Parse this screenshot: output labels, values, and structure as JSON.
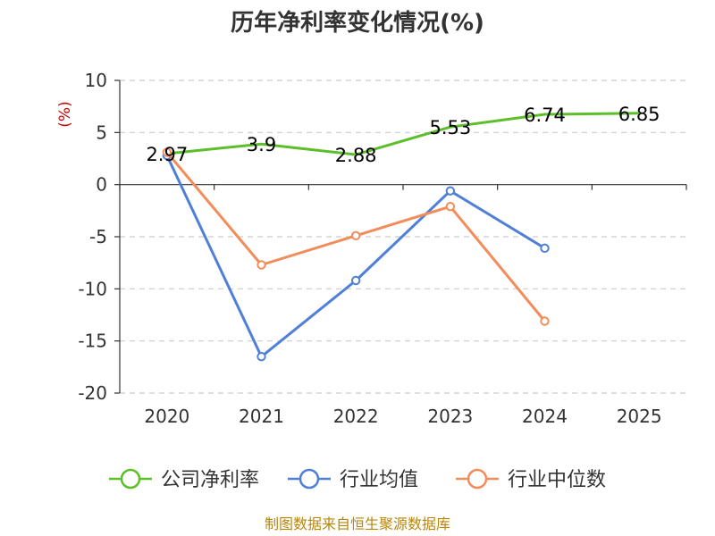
{
  "source": "制图数据来自恒生聚源数据库",
  "chart_data": {
    "type": "line",
    "title": "历年净利率变化情况(%)",
    "ylabel": "(%)",
    "xlabel": "",
    "ylim": [
      -20,
      10
    ],
    "yticks": [
      10,
      5,
      0,
      -5,
      -10,
      -15,
      -20
    ],
    "categories": [
      "2020",
      "2021",
      "2022",
      "2023",
      "2024",
      "2025"
    ],
    "grid": true,
    "legend_position": "bottom",
    "series": [
      {
        "name": "公司净利率",
        "color": "#5cbf2a",
        "values": [
          2.97,
          3.9,
          2.88,
          5.53,
          6.74,
          6.85
        ],
        "labels": [
          "2.97",
          "3.9",
          "2.88",
          "5.53",
          "6.74",
          "6.85"
        ],
        "show_labels": true,
        "show_markers": false
      },
      {
        "name": "行业均值",
        "color": "#4f7fd8",
        "values": [
          2.8,
          -16.5,
          -9.2,
          -0.6,
          -6.1,
          null
        ],
        "show_labels": false,
        "show_markers": true
      },
      {
        "name": "行业中位数",
        "color": "#f28c5a",
        "values": [
          3.1,
          -7.7,
          -4.9,
          -2.1,
          -13.1,
          null
        ],
        "show_labels": false,
        "show_markers": true
      }
    ]
  }
}
